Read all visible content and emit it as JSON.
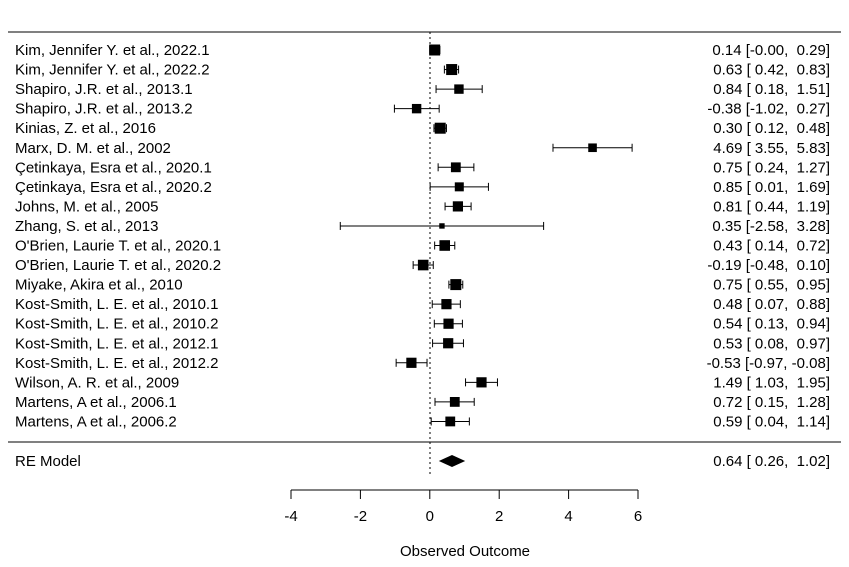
{
  "chart_data": {
    "type": "forest",
    "xlabel": "Observed Outcome",
    "xlim": [
      -4,
      6
    ],
    "xticks": [
      -4,
      -2,
      0,
      2,
      4,
      6
    ],
    "reference_line": 0,
    "studies": [
      {
        "label": "Kim, Jennifer Y. et al., 2022.1",
        "estimate": 0.14,
        "lower": -0.0,
        "upper": 0.29,
        "ci_text": "0.14 [-0.00,  0.29]",
        "weight": 1.0
      },
      {
        "label": "Kim, Jennifer Y. et al., 2022.2",
        "estimate": 0.63,
        "lower": 0.42,
        "upper": 0.83,
        "ci_text": "0.63 [ 0.42,  0.83]",
        "weight": 1.0
      },
      {
        "label": "Shapiro, J.R. et al., 2013.1",
        "estimate": 0.84,
        "lower": 0.18,
        "upper": 1.51,
        "ci_text": "0.84 [ 0.18,  1.51]",
        "weight": 0.8
      },
      {
        "label": "Shapiro, J.R. et al., 2013.2",
        "estimate": -0.38,
        "lower": -1.02,
        "upper": 0.27,
        "ci_text": "-0.38 [-1.02,  0.27]",
        "weight": 0.8
      },
      {
        "label": "Kinias, Z. et al., 2016",
        "estimate": 0.3,
        "lower": 0.12,
        "upper": 0.48,
        "ci_text": "0.30 [ 0.12,  0.48]",
        "weight": 1.0
      },
      {
        "label": "Marx, D. M. et al., 2002",
        "estimate": 4.69,
        "lower": 3.55,
        "upper": 5.83,
        "ci_text": "4.69 [ 3.55,  5.83]",
        "weight": 0.7
      },
      {
        "label": "Çetinkaya, Esra et al., 2020.1",
        "estimate": 0.75,
        "lower": 0.24,
        "upper": 1.27,
        "ci_text": "0.75 [ 0.24,  1.27]",
        "weight": 0.85
      },
      {
        "label": "Çetinkaya, Esra et al., 2020.2",
        "estimate": 0.85,
        "lower": 0.01,
        "upper": 1.69,
        "ci_text": "0.85 [ 0.01,  1.69]",
        "weight": 0.75
      },
      {
        "label": "Johns, M. et al., 2005",
        "estimate": 0.81,
        "lower": 0.44,
        "upper": 1.19,
        "ci_text": "0.81 [ 0.44,  1.19]",
        "weight": 0.9
      },
      {
        "label": "Zhang, S. et al., 2013",
        "estimate": 0.35,
        "lower": -2.58,
        "upper": 3.28,
        "ci_text": "0.35 [-2.58,  3.28]",
        "weight": 0.3
      },
      {
        "label": "O'Brien, Laurie T. et al., 2020.1",
        "estimate": 0.43,
        "lower": 0.14,
        "upper": 0.72,
        "ci_text": "0.43 [ 0.14,  0.72]",
        "weight": 0.95
      },
      {
        "label": "O'Brien, Laurie T. et al., 2020.2",
        "estimate": -0.19,
        "lower": -0.48,
        "upper": 0.1,
        "ci_text": "-0.19 [-0.48,  0.10]",
        "weight": 0.95
      },
      {
        "label": "Miyake, Akira et al., 2010",
        "estimate": 0.75,
        "lower": 0.55,
        "upper": 0.95,
        "ci_text": "0.75 [ 0.55,  0.95]",
        "weight": 1.0
      },
      {
        "label": "Kost-Smith, L. E. et al., 2010.1",
        "estimate": 0.48,
        "lower": 0.07,
        "upper": 0.88,
        "ci_text": "0.48 [ 0.07,  0.88]",
        "weight": 0.9
      },
      {
        "label": "Kost-Smith, L. E. et al., 2010.2",
        "estimate": 0.54,
        "lower": 0.13,
        "upper": 0.94,
        "ci_text": "0.54 [ 0.13,  0.94]",
        "weight": 0.9
      },
      {
        "label": "Kost-Smith, L. E. et al., 2012.1",
        "estimate": 0.53,
        "lower": 0.08,
        "upper": 0.97,
        "ci_text": "0.53 [ 0.08,  0.97]",
        "weight": 0.9
      },
      {
        "label": "Kost-Smith, L. E. et al., 2012.2",
        "estimate": -0.53,
        "lower": -0.97,
        "upper": -0.08,
        "ci_text": "-0.53 [-0.97, -0.08]",
        "weight": 0.9
      },
      {
        "label": "Wilson, A. R. et al., 2009",
        "estimate": 1.49,
        "lower": 1.03,
        "upper": 1.95,
        "ci_text": "1.49 [ 1.03,  1.95]",
        "weight": 0.9
      },
      {
        "label": "Martens, A et al., 2006.1",
        "estimate": 0.72,
        "lower": 0.15,
        "upper": 1.28,
        "ci_text": "0.72 [ 0.15,  1.28]",
        "weight": 0.85
      },
      {
        "label": "Martens, A et al., 2006.2",
        "estimate": 0.59,
        "lower": 0.04,
        "upper": 1.14,
        "ci_text": "0.59 [ 0.04,  1.14]",
        "weight": 0.85
      }
    ],
    "summary": {
      "label": "RE Model",
      "estimate": 0.64,
      "lower": 0.26,
      "upper": 1.02,
      "ci_text": "0.64 [ 0.26,  1.02]"
    }
  }
}
